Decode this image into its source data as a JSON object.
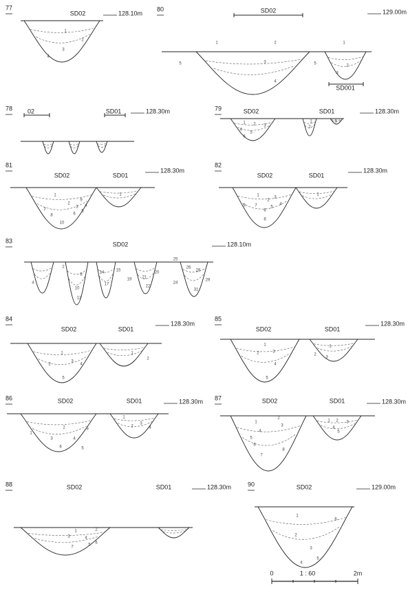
{
  "figures": [
    {
      "number": "77",
      "labels": [
        "SD02"
      ],
      "elevation": "128.10m",
      "layers": [
        "1",
        "2",
        "3",
        "4"
      ]
    },
    {
      "number": "80",
      "labels": [
        "SD02",
        "SD001"
      ],
      "elevation": "129.00m",
      "layers": [
        "1",
        "2",
        "3",
        "5",
        "4",
        "5",
        "1",
        "2",
        "3"
      ]
    },
    {
      "number": "78",
      "labels": [
        "02",
        "SD01"
      ],
      "elevation": "128.30m",
      "layers": []
    },
    {
      "number": "79",
      "labels": [
        "SD02",
        "SD01"
      ],
      "elevation": "128.30m",
      "layers": [
        "1",
        "2",
        "3",
        "4",
        "5",
        "6",
        "1",
        "2",
        "3"
      ]
    },
    {
      "number": "81",
      "labels": [
        "SD02",
        "SD01"
      ],
      "elevation": "128.30m",
      "layers": [
        "1",
        "2",
        "3",
        "4",
        "5",
        "6",
        "7",
        "8",
        "9",
        "10",
        "1"
      ]
    },
    {
      "number": "82",
      "labels": [
        "SD02",
        "SD01"
      ],
      "elevation": "128.30m",
      "layers": [
        "1",
        "2",
        "3",
        "4",
        "5",
        "6",
        "7",
        "8",
        "9",
        "1"
      ]
    },
    {
      "number": "83",
      "labels": [
        "SD02"
      ],
      "elevation": "128.10m",
      "layers": [
        "2",
        "4",
        "8",
        "10",
        "13",
        "14",
        "15",
        "17",
        "19",
        "20",
        "21",
        "22",
        "24",
        "25",
        "26",
        "28",
        "29",
        "31"
      ]
    },
    {
      "number": "84",
      "labels": [
        "SD02",
        "SD01"
      ],
      "elevation": "128.30m",
      "layers": [
        "1",
        "2",
        "3",
        "4",
        "5",
        "1",
        "2"
      ]
    },
    {
      "number": "85",
      "labels": [
        "SD02",
        "SD01"
      ],
      "elevation": "128.30m",
      "layers": [
        "1",
        "2",
        "3",
        "4",
        "5",
        "1",
        "2",
        "3"
      ]
    },
    {
      "number": "86",
      "labels": [
        "SD02",
        "SD01"
      ],
      "elevation": "128.30m",
      "layers": [
        "1",
        "2",
        "3",
        "4",
        "5",
        "6",
        "9",
        "1",
        "2",
        "3",
        "4"
      ]
    },
    {
      "number": "87",
      "labels": [
        "SD02",
        "SD01"
      ],
      "elevation": "128.30m",
      "layers": [
        "1",
        "2",
        "3",
        "4",
        "5",
        "6",
        "7",
        "8",
        "1",
        "2",
        "3",
        "4",
        "5"
      ]
    },
    {
      "number": "88",
      "labels": [
        "SD02",
        "SD01"
      ],
      "elevation": "128.30m",
      "layers": [
        "1",
        "2",
        "3",
        "4",
        "5",
        "6",
        "7"
      ]
    },
    {
      "number": "90",
      "labels": [
        "SD02"
      ],
      "elevation": "129.00m",
      "layers": [
        "1",
        "2",
        "3",
        "4",
        "5",
        "6"
      ]
    }
  ],
  "scale": {
    "start": "0",
    "ratio": "1 : 60",
    "end": "2m"
  }
}
